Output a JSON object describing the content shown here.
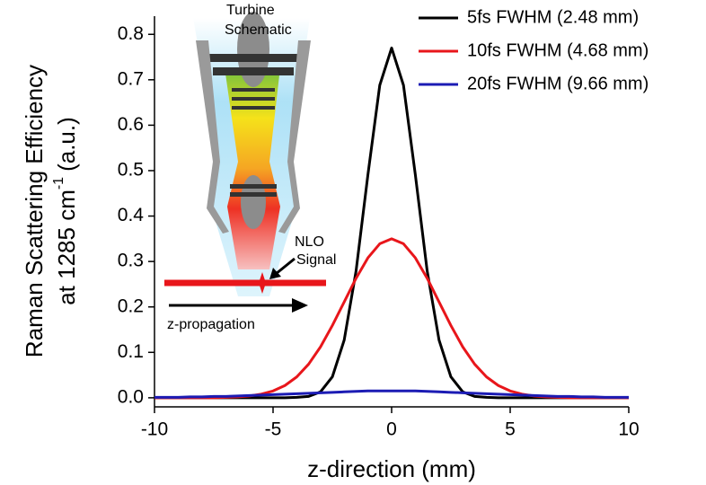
{
  "chart_data": {
    "type": "line",
    "xlabel": "z-direction (mm)",
    "ylabel": {
      "line1": "Raman Scattering Efficiency",
      "line2": "at 1285 cm",
      "superscript": "-1",
      "unit": "(a.u.)"
    },
    "x": [
      -10,
      -9.5,
      -9,
      -8.5,
      -8,
      -7.5,
      -7,
      -6.5,
      -6,
      -5.5,
      -5,
      -4.5,
      -4,
      -3.5,
      -3,
      -2.5,
      -2,
      -1.5,
      -1,
      -0.5,
      0,
      0.5,
      1,
      1.5,
      2,
      2.5,
      3,
      3.5,
      4,
      4.5,
      5,
      5.5,
      6,
      6.5,
      7,
      7.5,
      8,
      8.5,
      9,
      9.5,
      10
    ],
    "series": [
      {
        "name": "5fs FWHM (2.48 mm)",
        "color": "#000000",
        "values": [
          0,
          0,
          0,
          0,
          0,
          0,
          0,
          0,
          0,
          0,
          0,
          0,
          0.001,
          0.003,
          0.013,
          0.046,
          0.127,
          0.279,
          0.491,
          0.688,
          0.77,
          0.688,
          0.491,
          0.279,
          0.127,
          0.046,
          0.013,
          0.003,
          0.001,
          0,
          0,
          0,
          0,
          0,
          0,
          0,
          0,
          0,
          0,
          0,
          0
        ]
      },
      {
        "name": "10fs FWHM (4.68 mm)",
        "color": "#e8161b",
        "values": [
          0,
          0,
          0,
          0,
          0,
          0,
          0.001,
          0.002,
          0.004,
          0.008,
          0.015,
          0.027,
          0.046,
          0.074,
          0.112,
          0.159,
          0.211,
          0.263,
          0.308,
          0.339,
          0.35,
          0.339,
          0.308,
          0.263,
          0.211,
          0.159,
          0.112,
          0.074,
          0.046,
          0.027,
          0.015,
          0.008,
          0.004,
          0.002,
          0.001,
          0,
          0,
          0,
          0,
          0,
          0
        ]
      },
      {
        "name": "20fs FWHM (9.66 mm)",
        "color": "#1c1cb4",
        "values": [
          0.001,
          0.001,
          0.001,
          0.002,
          0.002,
          0.003,
          0.003,
          0.004,
          0.005,
          0.006,
          0.007,
          0.008,
          0.009,
          0.01,
          0.011,
          0.012,
          0.013,
          0.014,
          0.015,
          0.015,
          0.015,
          0.015,
          0.015,
          0.014,
          0.013,
          0.012,
          0.011,
          0.01,
          0.009,
          0.008,
          0.007,
          0.006,
          0.005,
          0.004,
          0.003,
          0.003,
          0.002,
          0.002,
          0.001,
          0.001,
          0.001
        ]
      }
    ],
    "xlim": [
      -10,
      10
    ],
    "xticks": [
      -10,
      -5,
      0,
      5,
      10
    ],
    "ylim": [
      -0.02,
      0.84
    ],
    "yticks": [
      {
        "value": 0,
        "label": "0.0"
      },
      0.1,
      0.2,
      0.3,
      0.4,
      0.5,
      0.6,
      0.7,
      0.8
    ],
    "grid": false,
    "legend": "top-right",
    "annotations": {
      "turbine": [
        "Turbine",
        "Schematic"
      ],
      "signal": [
        "NLO",
        "Signal"
      ],
      "propagation": "z-propagation"
    }
  }
}
